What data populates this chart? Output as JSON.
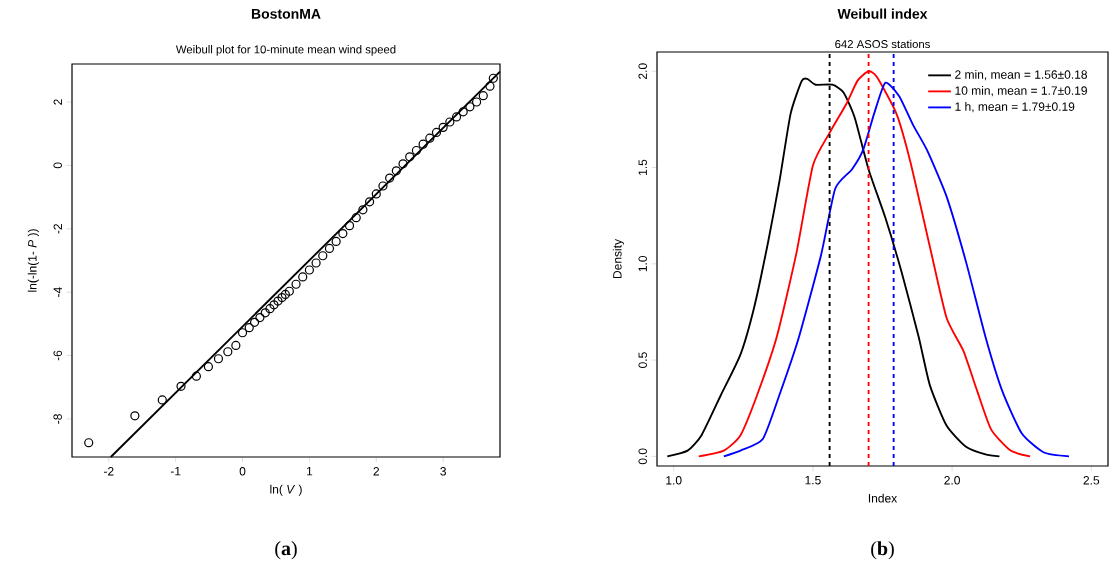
{
  "chart_data": [
    {
      "type": "scatter",
      "title": "BostonMA",
      "subtitle": "Weibull plot for 10-minute mean wind speed",
      "xlabel": "ln( *V* )",
      "ylabel": "ln(-ln(1- *P* ))",
      "annotations": [
        "(**a**)"
      ],
      "xlim": [
        -2.55,
        3.85
      ],
      "ylim": [
        -9.2,
        3.2
      ],
      "xticks": [
        -2,
        -1,
        0,
        1,
        2,
        3
      ],
      "yticks": [
        -8,
        -6,
        -4,
        -2,
        0,
        2
      ],
      "legend": false,
      "series": [
        {
          "type": "scatter",
          "marker": "circle",
          "color": "#000000",
          "x": [
            -2.3,
            -1.61,
            -1.2,
            -0.92,
            -0.69,
            -0.51,
            -0.36,
            -0.22,
            -0.1,
            0,
            0.1,
            0.18,
            0.26,
            0.34,
            0.41,
            0.47,
            0.53,
            0.59,
            0.64,
            0.7,
            0.8,
            0.9,
            1.0,
            1.1,
            1.2,
            1.3,
            1.4,
            1.5,
            1.6,
            1.7,
            1.8,
            1.9,
            2.0,
            2.1,
            2.2,
            2.3,
            2.4,
            2.5,
            2.6,
            2.7,
            2.8,
            2.9,
            3.0,
            3.1,
            3.2,
            3.3,
            3.4,
            3.5,
            3.6,
            3.7,
            3.75
          ],
          "values": [
            -8.75,
            -7.9,
            -7.4,
            -6.97,
            -6.65,
            -6.35,
            -6.1,
            -5.88,
            -5.68,
            -5.28,
            -5.12,
            -4.95,
            -4.8,
            -4.65,
            -4.52,
            -4.4,
            -4.28,
            -4.17,
            -4.07,
            -3.97,
            -3.75,
            -3.52,
            -3.3,
            -3.08,
            -2.85,
            -2.62,
            -2.4,
            -2.15,
            -1.9,
            -1.65,
            -1.4,
            -1.15,
            -0.9,
            -0.65,
            -0.4,
            -0.17,
            0.05,
            0.27,
            0.47,
            0.67,
            0.86,
            1.04,
            1.2,
            1.37,
            1.53,
            1.69,
            1.85,
            2.0,
            2.2,
            2.5,
            2.75
          ]
        },
        {
          "type": "line",
          "marker": "none",
          "color": "#000000",
          "x": [
            -1.97,
            3.85
          ],
          "values": [
            -9.2,
            2.96
          ]
        }
      ]
    },
    {
      "type": "line",
      "title": "Weibull index",
      "subtitle": "642 ASOS stations",
      "xlabel": "Index",
      "ylabel": "Density",
      "annotations": [
        "(**b**)"
      ],
      "xlim": [
        0.94,
        2.56
      ],
      "ylim": [
        -0.05,
        2.1
      ],
      "xticks": [
        {
          "value": 1,
          "label": "1.0"
        },
        1.5,
        {
          "value": 2,
          "label": "2.0"
        },
        2.5
      ],
      "yticks": [
        {
          "value": 0,
          "label": "0.0"
        },
        0.5,
        {
          "value": 1,
          "label": "1.0"
        },
        1.5,
        {
          "value": 2,
          "label": "2.0"
        }
      ],
      "legend": "top right",
      "line_style": "solid",
      "series": [
        {
          "name": "2 min, mean = 1.56±0.18",
          "color": "#000000",
          "x": [
            0.977,
            1.05,
            1.1,
            1.17,
            1.24,
            1.29,
            1.34,
            1.38,
            1.42,
            1.46,
            1.48,
            1.51,
            1.57,
            1.61,
            1.65,
            1.7,
            1.76,
            1.82,
            1.88,
            1.92,
            1.98,
            2.05,
            2.12,
            2.17
          ],
          "values": [
            0,
            0.03,
            0.11,
            0.32,
            0.53,
            0.78,
            1.12,
            1.43,
            1.78,
            1.95,
            1.96,
            1.93,
            1.93,
            1.89,
            1.76,
            1.49,
            1.24,
            0.95,
            0.62,
            0.37,
            0.16,
            0.05,
            0.01,
            0
          ]
        },
        {
          "name": "10 min, mean = 1.7±0.19",
          "color": "#ff0000",
          "x": [
            1.09,
            1.18,
            1.24,
            1.3,
            1.37,
            1.44,
            1.5,
            1.56,
            1.62,
            1.66,
            1.7,
            1.73,
            1.8,
            1.85,
            1.92,
            1.98,
            2.04,
            2.09,
            2.14,
            2.21,
            2.28
          ],
          "values": [
            0,
            0.03,
            0.11,
            0.32,
            0.62,
            1.05,
            1.51,
            1.68,
            1.83,
            1.95,
            2.0,
            1.97,
            1.78,
            1.53,
            1.09,
            0.72,
            0.55,
            0.34,
            0.14,
            0.03,
            0
          ]
        },
        {
          "name": "1 h, mean = 1.79±0.19",
          "color": "#0000ff",
          "x": [
            1.18,
            1.24,
            1.32,
            1.38,
            1.45,
            1.53,
            1.58,
            1.64,
            1.68,
            1.72,
            1.76,
            1.81,
            1.86,
            1.91,
            1.98,
            2.05,
            2.12,
            2.18,
            2.25,
            2.33,
            2.42
          ],
          "values": [
            0,
            0.03,
            0.09,
            0.32,
            0.62,
            1.05,
            1.39,
            1.49,
            1.59,
            1.78,
            1.94,
            1.87,
            1.72,
            1.59,
            1.35,
            1.01,
            0.62,
            0.34,
            0.12,
            0.02,
            0
          ]
        }
      ],
      "ref_lines": [
        {
          "axis": "x",
          "value": 1.56,
          "color": "#000000",
          "line_style": "dashed"
        },
        {
          "axis": "x",
          "value": 1.7,
          "color": "#ff0000",
          "line_style": "dashed"
        },
        {
          "axis": "x",
          "value": 1.79,
          "color": "#0000ff",
          "line_style": "dashed"
        }
      ]
    }
  ]
}
